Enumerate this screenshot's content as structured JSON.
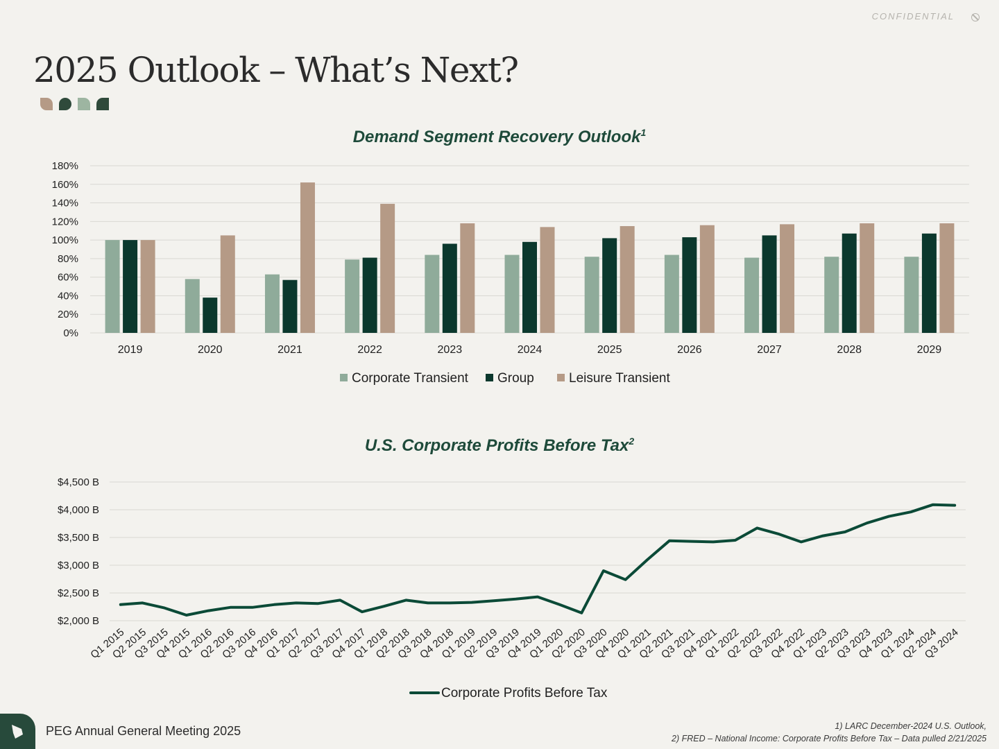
{
  "header": {
    "confidential": "CONFIDENTIAL",
    "title": "2025 Outlook – What’s Next?"
  },
  "colors": {
    "corporate": "#8fab9a",
    "group": "#0b382d",
    "leisure": "#b59a86",
    "line": "#0b4a37",
    "grid": "#d9d8d3"
  },
  "chart_data": [
    {
      "type": "bar",
      "title": "Demand Segment Recovery Outlook",
      "title_sup": "1",
      "categories": [
        "2019",
        "2020",
        "2021",
        "2022",
        "2023",
        "2024",
        "2025",
        "2026",
        "2027",
        "2028",
        "2029"
      ],
      "series": [
        {
          "name": "Corporate Transient",
          "values": [
            100,
            58,
            63,
            79,
            84,
            84,
            82,
            84,
            81,
            82,
            82
          ]
        },
        {
          "name": "Group",
          "values": [
            100,
            38,
            57,
            81,
            96,
            98,
            102,
            103,
            105,
            107,
            107
          ]
        },
        {
          "name": "Leisure Transient",
          "values": [
            100,
            105,
            162,
            139,
            118,
            114,
            115,
            116,
            117,
            118,
            118
          ]
        }
      ],
      "yticks": [
        "0%",
        "20%",
        "40%",
        "60%",
        "80%",
        "100%",
        "120%",
        "140%",
        "160%",
        "180%"
      ],
      "ylim": [
        0,
        180
      ],
      "xlabel": "",
      "ylabel": "",
      "legend": "bottom"
    },
    {
      "type": "line",
      "title": "U.S. Corporate Profits Before Tax",
      "title_sup": "2",
      "categories": [
        "Q1 2015",
        "Q2 2015",
        "Q3 2015",
        "Q4 2015",
        "Q1 2016",
        "Q2 2016",
        "Q3 2016",
        "Q4 2016",
        "Q1 2017",
        "Q2 2017",
        "Q3 2017",
        "Q4 2017",
        "Q1 2018",
        "Q2 2018",
        "Q3 2018",
        "Q4 2018",
        "Q1 2019",
        "Q2 2019",
        "Q3 2019",
        "Q4 2019",
        "Q1 2020",
        "Q2 2020",
        "Q3 2020",
        "Q4 2020",
        "Q1 2021",
        "Q2 2021",
        "Q3 2021",
        "Q4 2021",
        "Q1 2022",
        "Q2 2022",
        "Q3 2022",
        "Q4 2022",
        "Q1 2023",
        "Q2 2023",
        "Q3 2023",
        "Q4 2023",
        "Q1 2024",
        "Q2 2024",
        "Q3 2024"
      ],
      "series": [
        {
          "name": "Corporate Profits Before Tax",
          "values": [
            2290,
            2320,
            2230,
            2100,
            2180,
            2240,
            2240,
            2290,
            2320,
            2310,
            2370,
            2160,
            2260,
            2370,
            2320,
            2320,
            2330,
            2360,
            2390,
            2430,
            2290,
            2140,
            2900,
            2740,
            3100,
            3440,
            3430,
            3420,
            3450,
            3670,
            3560,
            3420,
            3530,
            3600,
            3760,
            3880,
            3960,
            4090,
            4080
          ]
        }
      ],
      "yticks": [
        "$2,000 B",
        "$2,500 B",
        "$3,000 B",
        "$3,500 B",
        "$4,000 B",
        "$4,500 B"
      ],
      "ylim": [
        2000,
        4500
      ],
      "xlabel": "",
      "ylabel": "",
      "legend": "bottom"
    }
  ],
  "footer": {
    "meeting": "PEG Annual General Meeting 2025",
    "note1": "1) LARC December-2024 U.S. Outlook,",
    "note2": "2) FRED – National Income: Corporate Profits Before Tax – Data pulled 2/21/2025"
  }
}
